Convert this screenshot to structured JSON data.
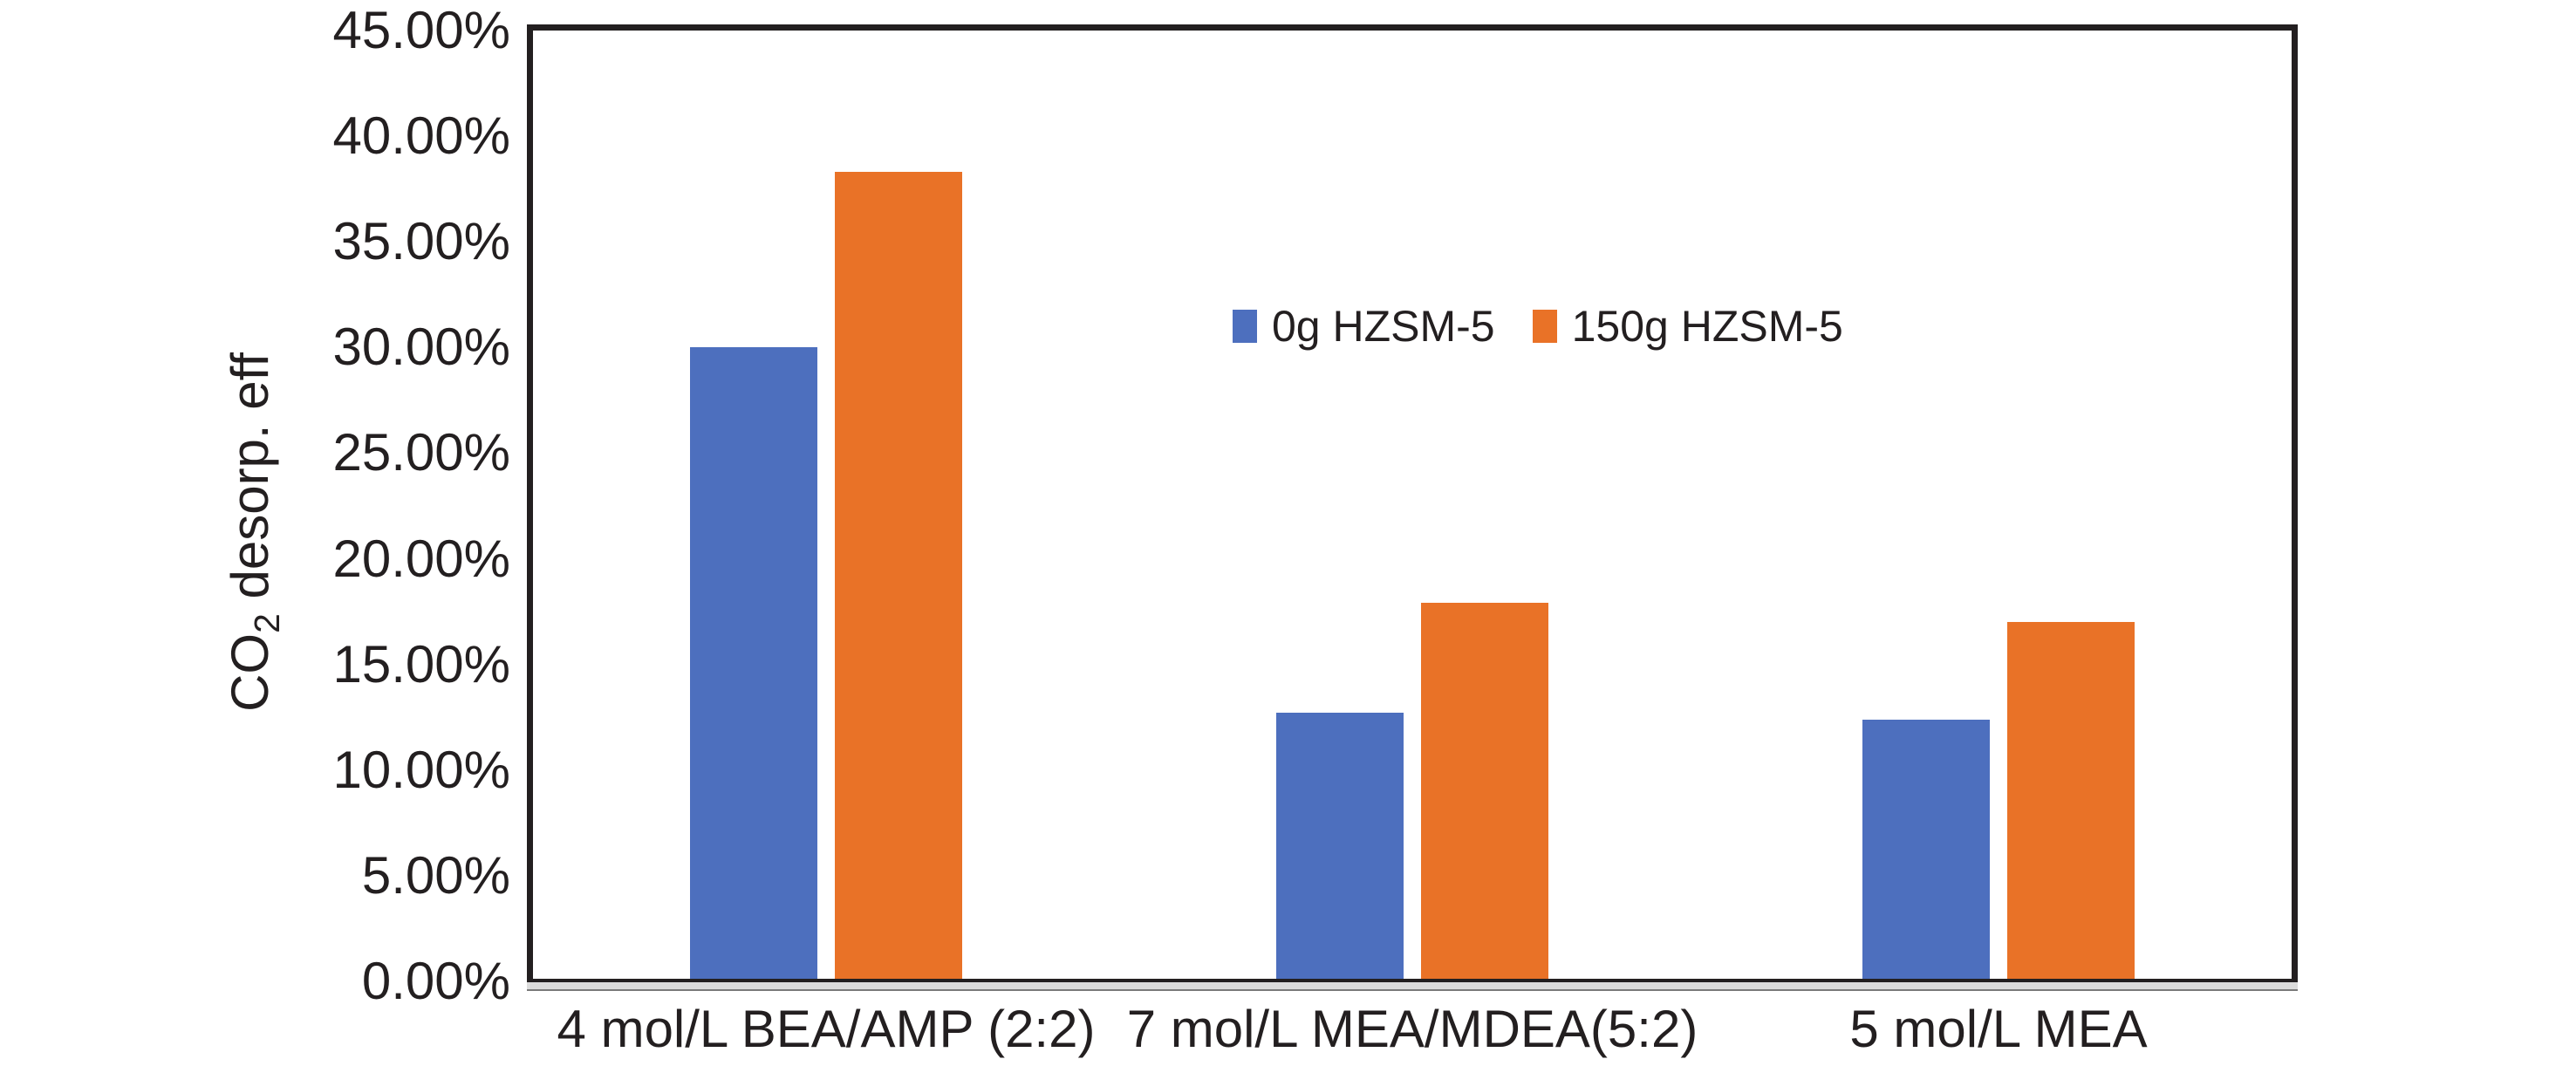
{
  "figure": {
    "background_color": "#ffffff",
    "frame_color": "#231F20",
    "text_color": "#231F20",
    "axis_shadow_color": "#DCDCDC"
  },
  "chart_data": {
    "type": "bar",
    "title": "",
    "xlabel": "",
    "ylabel": "CO2 desorp. eff",
    "ylabel_parts": {
      "prefix": "CO",
      "subscript": "2",
      "suffix": " desorp. eff"
    },
    "categories": [
      "4 mol/L BEA/AMP (2:2)",
      "7 mol/L MEA/MDEA(5:2)",
      "5 mol/L MEA"
    ],
    "series": [
      {
        "name": "0g HZSM-5",
        "color": "#4D6FBE",
        "values": [
          30.0,
          12.7,
          12.4
        ]
      },
      {
        "name": "150g HZSM-5",
        "color": "#E97227",
        "values": [
          38.3,
          17.9,
          17.0
        ]
      }
    ],
    "y_axis": {
      "min": 0,
      "max": 45,
      "step": 5,
      "unit": "%",
      "tick_labels": [
        "0.00%",
        "5.00%",
        "10.00%",
        "15.00%",
        "20.00%",
        "25.00%",
        "30.00%",
        "35.00%",
        "40.00%",
        "45.00%"
      ]
    },
    "grid": false,
    "legend_position": "inside-top-center"
  }
}
